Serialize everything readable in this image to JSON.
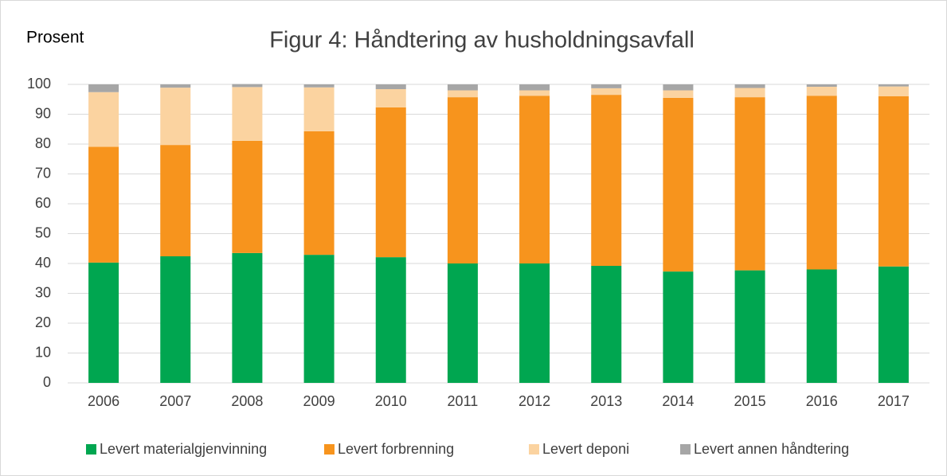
{
  "chart_data": {
    "type": "stacked_bar",
    "title": "Figur 4: Håndtering av husholdningsavfall",
    "y_axis_label": "Prosent",
    "categories": [
      "2006",
      "2007",
      "2008",
      "2009",
      "2010",
      "2011",
      "2012",
      "2013",
      "2014",
      "2015",
      "2016",
      "2017"
    ],
    "series": [
      {
        "name": "Levert materialgjenvinning",
        "color": "#00a650",
        "values": [
          40.3,
          42.4,
          43.5,
          42.9,
          42.1,
          40,
          40,
          39.2,
          37.3,
          37.7,
          38,
          39
        ]
      },
      {
        "name": "Levert forbrenning",
        "color": "#f7941d",
        "values": [
          38.8,
          37.3,
          37.6,
          41.4,
          50.2,
          55.7,
          56.2,
          57.3,
          58.2,
          58,
          58.2,
          57
        ]
      },
      {
        "name": "Levert deponi",
        "color": "#fbd3a0",
        "values": [
          18.3,
          19.2,
          18,
          14.7,
          6.1,
          2.3,
          1.8,
          2.2,
          2.5,
          3.1,
          3,
          3.3
        ]
      },
      {
        "name": "Levert annen håndtering",
        "color": "#a6a6a6",
        "values": [
          2.6,
          1.1,
          1,
          1,
          1.6,
          2,
          2,
          1.3,
          2,
          1.2,
          0.8,
          0.7
        ]
      }
    ],
    "ylim": [
      0,
      100
    ],
    "yticks": [
      0,
      10,
      20,
      30,
      40,
      50,
      60,
      70,
      80,
      90,
      100
    ],
    "grid": true,
    "legend": "bottom"
  }
}
